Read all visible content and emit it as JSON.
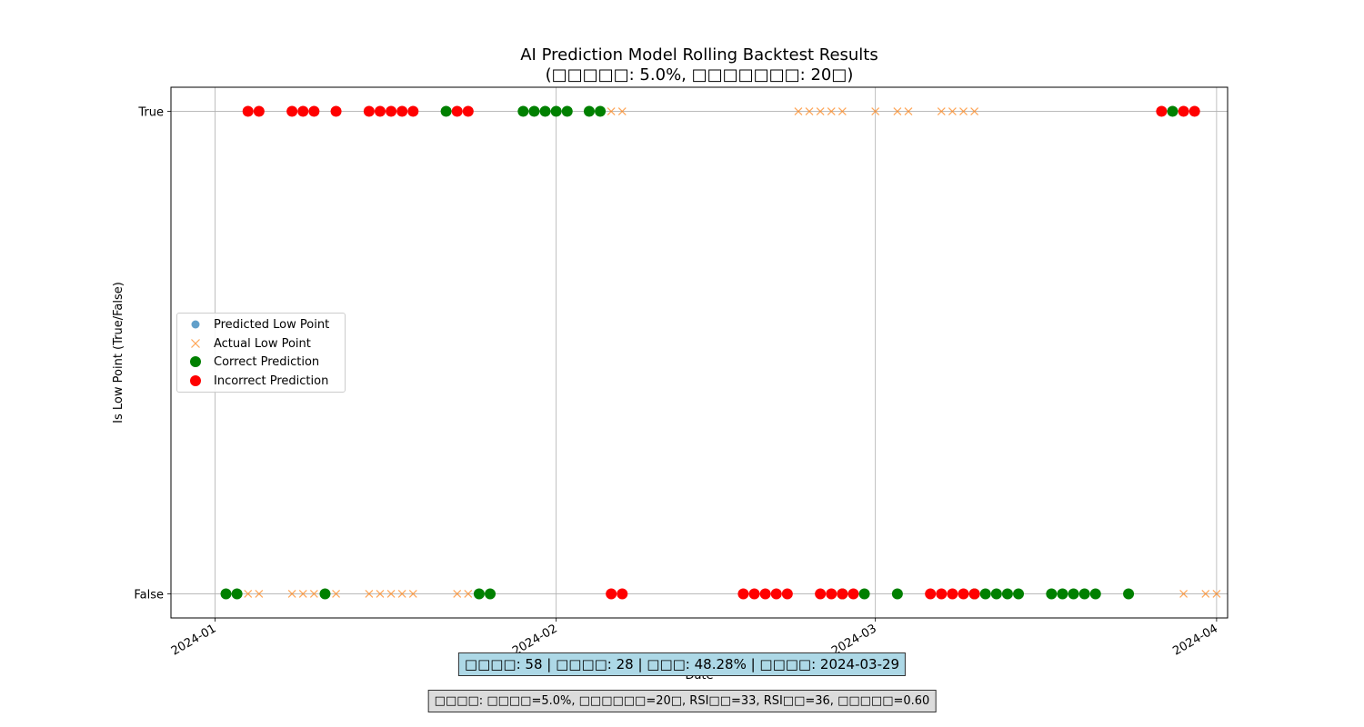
{
  "chart_data": {
    "type": "scatter",
    "title": "AI Prediction Model Rolling Backtest Results",
    "subtitle": "(□□□□□: 5.0%, □□□□□□□: 20□)",
    "xlabel": "Date",
    "ylabel": "Is Low Point (True/False)",
    "x_ticks": [
      "2024-01",
      "2024-02",
      "2024-03",
      "2024-04"
    ],
    "y_ticks": [
      "False",
      "True"
    ],
    "xlim": [
      "2023-12-28",
      "2024-04-02"
    ],
    "ylim": [
      -0.05,
      1.05
    ],
    "grid": true,
    "legend_position": "center-left",
    "colors": {
      "predicted": "#1f77b4",
      "actual": "#ff7f0e",
      "correct": "#008000",
      "incorrect": "#ff0000"
    },
    "legend": [
      {
        "key": "predicted",
        "label": "Predicted Low Point",
        "marker": "circle-small"
      },
      {
        "key": "actual",
        "label": "Actual Low Point",
        "marker": "x"
      },
      {
        "key": "correct",
        "label": "Correct Prediction",
        "marker": "circle"
      },
      {
        "key": "incorrect",
        "label": "Incorrect Prediction",
        "marker": "circle"
      }
    ],
    "series": [
      {
        "name": "Actual Low Point",
        "key": "actual",
        "true_dates": [
          "2024-02-06",
          "2024-02-07",
          "2024-02-23",
          "2024-02-24",
          "2024-02-25",
          "2024-02-26",
          "2024-02-27",
          "2024-03-01",
          "2024-03-03",
          "2024-03-04",
          "2024-03-07",
          "2024-03-08",
          "2024-03-09",
          "2024-03-10"
        ],
        "false_dates": [
          "2024-01-04",
          "2024-01-05",
          "2024-01-08",
          "2024-01-09",
          "2024-01-10",
          "2024-01-12",
          "2024-01-15",
          "2024-01-16",
          "2024-01-17",
          "2024-01-18",
          "2024-01-19",
          "2024-01-23",
          "2024-01-24",
          "2024-03-29",
          "2024-03-31",
          "2024-04-01"
        ]
      },
      {
        "name": "Correct Prediction",
        "key": "correct",
        "true_dates": [
          "2024-01-22",
          "2024-01-29",
          "2024-01-30",
          "2024-01-31",
          "2024-02-01",
          "2024-02-02",
          "2024-02-04",
          "2024-02-05",
          "2024-03-28"
        ],
        "false_dates": [
          "2024-01-02",
          "2024-01-03",
          "2024-01-11",
          "2024-01-25",
          "2024-01-26",
          "2024-02-27",
          "2024-02-29",
          "2024-03-03",
          "2024-03-10",
          "2024-03-11",
          "2024-03-12",
          "2024-03-13",
          "2024-03-14",
          "2024-03-17",
          "2024-03-18",
          "2024-03-19",
          "2024-03-20",
          "2024-03-21",
          "2024-03-24"
        ]
      },
      {
        "name": "Incorrect Prediction",
        "key": "incorrect",
        "true_dates": [
          "2024-01-04",
          "2024-01-05",
          "2024-01-08",
          "2024-01-09",
          "2024-01-10",
          "2024-01-12",
          "2024-01-15",
          "2024-01-16",
          "2024-01-17",
          "2024-01-18",
          "2024-01-19",
          "2024-01-23",
          "2024-01-24",
          "2024-03-27",
          "2024-03-29",
          "2024-03-30"
        ],
        "false_dates": [
          "2024-02-06",
          "2024-02-07",
          "2024-02-18",
          "2024-02-19",
          "2024-02-20",
          "2024-02-21",
          "2024-02-22",
          "2024-02-25",
          "2024-02-26",
          "2024-02-27",
          "2024-02-28",
          "2024-03-06",
          "2024-03-07",
          "2024-03-08",
          "2024-03-09",
          "2024-03-10"
        ]
      }
    ]
  },
  "summary": {
    "text": "□□□□: 58 | □□□□: 28 | □□□: 48.28% | □□□□: 2024-03-29"
  },
  "params": {
    "text": "□□□□: □□□□=5.0%, □□□□□□=20□, RSI□□=33, RSI□□=36, □□□□□=0.60"
  }
}
